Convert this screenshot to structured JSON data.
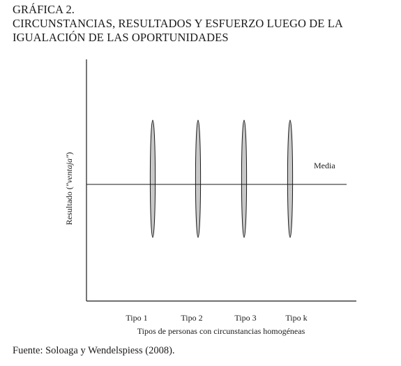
{
  "figure": {
    "label": "GRÁFICA 2.",
    "title_line1": "CIRCUNSTANCIAS, RESULTADOS Y ESFUERZO LUEGO DE LA",
    "title_line2": "IGUALACIÓN DE LAS OPORTUNIDADES"
  },
  "chart_data": {
    "type": "diagram",
    "ylabel_prefix": "Resultado (",
    "ylabel_italic": "\"ventaja\"",
    "ylabel_suffix": ")",
    "xlabel": "Tipos de personas con circunstancias homogéneas",
    "mean_label": "Media",
    "types": [
      "Tipo 1",
      "Tipo 2",
      "Tipo 3",
      "Tipo k"
    ],
    "colors": {
      "axis": "#1a1a1a",
      "ellipse_fill": "#c8c8c8",
      "ellipse_stroke": "#1a1a1a"
    }
  },
  "source": "Fuente: Soloaga y Wendelspiess (2008)."
}
